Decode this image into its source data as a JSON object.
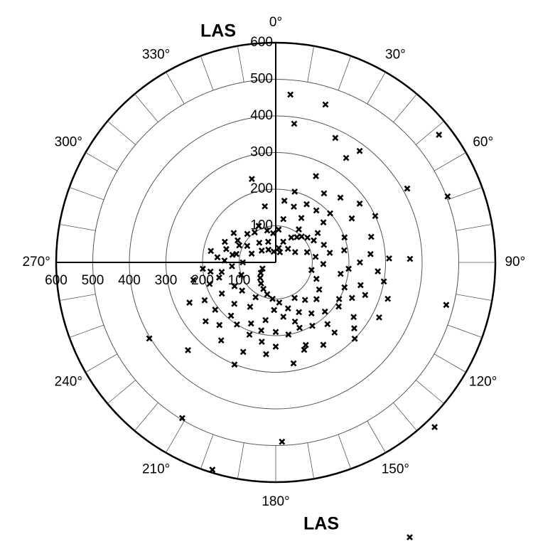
{
  "chart_data": {
    "type": "polar_scatter",
    "labels": [
      "LAS",
      "LAS"
    ],
    "rlim": [
      0,
      600
    ],
    "rticks": [
      100,
      200,
      300,
      400,
      500,
      600
    ],
    "thetaticks": [
      {
        "value": 0,
        "label": "0°"
      },
      {
        "value": 30,
        "label": "30°"
      },
      {
        "value": 60,
        "label": "60°"
      },
      {
        "value": 90,
        "label": "90°"
      },
      {
        "value": 120,
        "label": "120°"
      },
      {
        "value": 150,
        "label": "150°"
      },
      {
        "value": 180,
        "label": "180°"
      },
      {
        "value": 210,
        "label": "210°"
      },
      {
        "value": 240,
        "label": "240°"
      },
      {
        "value": 270,
        "label": "270°"
      },
      {
        "value": 300,
        "label": "300°"
      },
      {
        "value": 330,
        "label": "330°"
      }
    ],
    "direction": "clockwise",
    "zero_location": "top",
    "color": "#000000",
    "series": [
      {
        "theta": [
          20,
          40,
          60,
          80,
          100,
          120,
          140,
          160,
          180,
          200,
          220,
          240,
          260,
          280,
          300,
          320,
          340,
          10,
          30,
          50,
          70,
          90,
          110,
          130,
          150,
          170,
          190,
          210,
          230,
          250,
          270,
          290,
          310,
          330,
          350,
          15,
          25,
          35,
          45,
          55,
          65,
          75,
          85,
          95,
          105,
          115,
          125,
          135,
          145,
          155,
          165,
          175,
          185,
          195,
          205,
          215,
          225,
          235,
          245,
          255,
          265,
          275,
          285,
          295,
          305,
          315,
          325,
          335,
          345,
          355,
          5,
          12,
          22,
          32,
          42,
          52,
          62,
          72,
          82,
          92,
          102,
          112,
          122,
          132,
          142,
          152,
          162,
          172,
          182,
          192,
          202,
          212,
          222,
          232,
          242,
          252,
          262,
          272,
          282,
          292,
          134,
          118,
          100,
          88,
          60,
          48,
          38,
          28,
          18,
          8,
          170,
          200,
          215,
          230,
          245,
          258,
          140,
          125,
          110,
          95,
          80,
          70,
          55,
          45,
          35,
          150,
          160,
          180,
          190,
          210,
          225,
          240,
          265,
          280,
          300,
          5,
          17.5,
          7.6,
          25.6,
          52,
          37,
          34,
          60.7,
          69,
          88.5,
          104,
          136,
          154,
          178,
          197,
          211,
          239,
          225,
          344,
          349,
          108,
          186,
          202,
          162
        ],
        "r": [
          60,
          90,
          120,
          150,
          180,
          200,
          220,
          240,
          230,
          210,
          190,
          170,
          150,
          120,
          90,
          70,
          60,
          120,
          140,
          170,
          200,
          230,
          260,
          280,
          260,
          200,
          160,
          140,
          120,
          100,
          90,
          70,
          50,
          40,
          30,
          200,
          260,
          230,
          250,
          280,
          300,
          270,
          260,
          280,
          240,
          230,
          210,
          190,
          170,
          150,
          130,
          110,
          100,
          90,
          80,
          70,
          60,
          50,
          40,
          160,
          200,
          160,
          140,
          110,
          140,
          110,
          100,
          110,
          90,
          80,
          90,
          40,
          30,
          80,
          50,
          110,
          60,
          90,
          110,
          130,
          100,
          120,
          140,
          150,
          130,
          110,
          170,
          150,
          130,
          190,
          180,
          200,
          230,
          210,
          220,
          190,
          180,
          140,
          110,
          150,
          300,
          320,
          300,
          310,
          240,
          200,
          180,
          180,
          160,
          170,
          280,
          260,
          260,
          250,
          260,
          230,
          250,
          260,
          200,
          200,
          190,
          140,
          140,
          100,
          110,
          200,
          190,
          190,
          220,
          110,
          160,
          130,
          120,
          180,
          120,
          460,
          452,
          382,
          377,
          566,
          381,
          344,
          412,
          503,
          367,
          480,
          625,
          835,
          490,
          592,
          496,
          403,
          339,
          237,
          156,
          322,
          252,
          301,
          251
        ]
      }
    ]
  }
}
